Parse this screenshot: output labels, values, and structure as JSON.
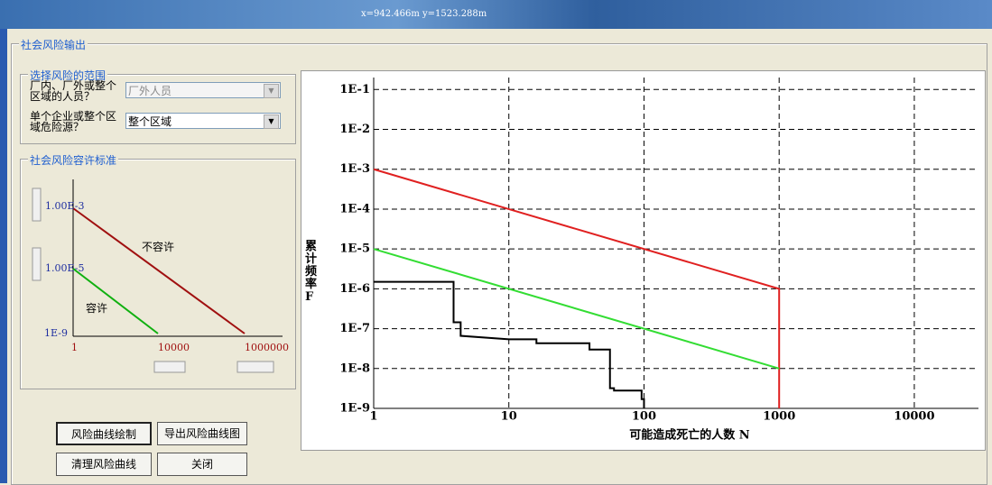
{
  "top_bar": {
    "coords": "x=942.466m  y=1523.288m"
  },
  "window": {
    "title": "社会风险输出",
    "scope_group": {
      "title": "选择风险的范围",
      "fields": [
        {
          "label": "厂内、厂外或整个区域的人员？",
          "value": "厂外人员"
        },
        {
          "label": "单个企业或整个区域危险源？",
          "value": "整个区域"
        }
      ]
    },
    "standard_group": {
      "title": "社会风险容许标准",
      "inset": {
        "y_labels": [
          "1.00E-3",
          "1.00E-5",
          "1E-9"
        ],
        "x_labels": [
          "1",
          "10000",
          "1000000"
        ],
        "regions": [
          "不容许",
          "容许"
        ]
      }
    },
    "buttons": [
      "风险曲线绘制",
      "导出风险曲线图",
      "清理风险曲线",
      "关闭"
    ]
  },
  "chart_data": {
    "type": "line",
    "xlabel": "可能造成死亡的人数 N",
    "ylabel": "累计频率F",
    "xlog": true,
    "ylog": true,
    "grid": true,
    "xlim": [
      1,
      20000
    ],
    "ylim": [
      1e-09,
      0.2
    ],
    "xticks": [
      1,
      10,
      100,
      1000,
      10000
    ],
    "yticks": [
      {
        "value": 0.1,
        "label": "1E-1"
      },
      {
        "value": 0.01,
        "label": "1E-2"
      },
      {
        "value": 0.001,
        "label": "1E-3"
      },
      {
        "value": 0.0001,
        "label": "1E-4"
      },
      {
        "value": 1e-05,
        "label": "1E-5"
      },
      {
        "value": 1e-06,
        "label": "1E-6"
      },
      {
        "value": 1e-07,
        "label": "1E-7"
      },
      {
        "value": 1e-08,
        "label": "1E-8"
      },
      {
        "value": 1e-09,
        "label": "1E-9"
      }
    ],
    "series": [
      {
        "color": "#e02020",
        "x": [
          1,
          1000,
          1000
        ],
        "values": [
          0.001,
          1e-06,
          1e-09
        ]
      },
      {
        "color": "#33dd33",
        "x": [
          1,
          1000
        ],
        "values": [
          1e-05,
          1e-08
        ]
      },
      {
        "color": "#000000",
        "x": [
          1,
          3.9,
          3.9,
          4.4,
          4.4,
          10,
          16,
          16,
          39.5,
          39.5,
          56,
          56,
          60,
          60,
          96,
          96,
          100,
          100
        ],
        "values": [
          1.5e-06,
          1.5e-06,
          1.45e-07,
          1.45e-07,
          6.6e-08,
          5.4e-08,
          5.4e-08,
          4.3e-08,
          4.3e-08,
          3e-08,
          3e-08,
          3.2e-09,
          3.2e-09,
          2.8e-09,
          2.8e-09,
          1.7e-09,
          1.7e-09,
          1e-09
        ]
      }
    ]
  }
}
